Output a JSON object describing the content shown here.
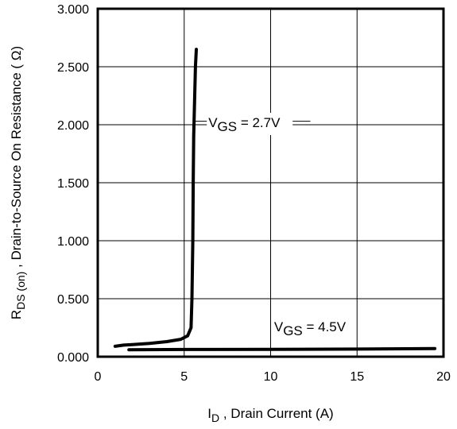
{
  "chart_data": {
    "type": "line",
    "title": "",
    "xlabel": {
      "main": "I",
      "sub": "D",
      "rest": " , Drain Current (A)"
    },
    "ylabel": {
      "main": "R",
      "sub": "DS (on)",
      "rest": " , Drain-to-Source On Resistance ( Ω)"
    },
    "xlim": [
      0,
      20
    ],
    "ylim": [
      0,
      3
    ],
    "x_ticks": [
      0,
      5,
      10,
      15,
      20
    ],
    "x_tick_labels": [
      "0",
      "5",
      "10",
      "15",
      "20"
    ],
    "y_ticks": [
      0,
      0.5,
      1,
      1.5,
      2,
      2.5,
      3
    ],
    "y_tick_labels": [
      "0.000",
      "0.500",
      "1.000",
      "1.500",
      "2.000",
      "2.500",
      "3.000"
    ],
    "grid": true,
    "series": [
      {
        "name": "VGS = 2.7V",
        "x": [
          1.0,
          1.5,
          2.0,
          3.0,
          4.0,
          4.8,
          5.2,
          5.4,
          5.45,
          5.5,
          5.52,
          5.55,
          5.6,
          5.65,
          5.7
        ],
        "y": [
          0.09,
          0.1,
          0.105,
          0.115,
          0.13,
          0.15,
          0.18,
          0.25,
          0.5,
          1.0,
          1.5,
          1.9,
          2.2,
          2.5,
          2.65
        ]
      },
      {
        "name": "VGS = 4.5V",
        "x": [
          1.8,
          5.0,
          10.0,
          15.0,
          19.5
        ],
        "y": [
          0.06,
          0.062,
          0.064,
          0.066,
          0.07
        ]
      }
    ],
    "annotations": [
      {
        "series": "VGS = 2.7V",
        "main": "V",
        "sub": "GS",
        "rest": " = 2.7V",
        "x": 6.4,
        "y": 1.98,
        "leader_x": [
          5.55,
          12.3
        ],
        "leader_y": 2.03
      },
      {
        "series": "VGS = 4.5V",
        "main": "V",
        "sub": "GS",
        "rest": " = 4.5V",
        "x": 10.2,
        "y": 0.22,
        "leader_x": null,
        "leader_y": null
      }
    ],
    "colors": {
      "line": "#000000",
      "grid": "#000000",
      "background": "#ffffff"
    }
  }
}
